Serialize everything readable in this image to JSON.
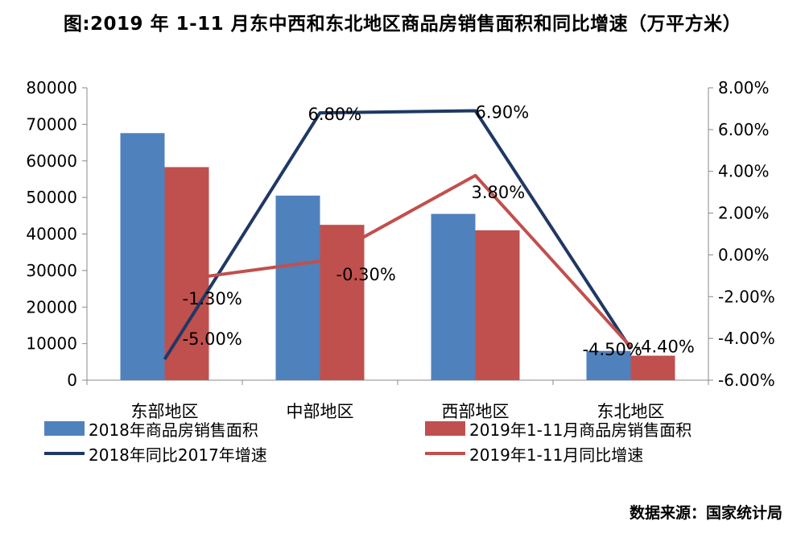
{
  "title": "图:2019 年 1-11 月东中西和东北地区商品房销售面积和同比增速（万平方米）",
  "source": "数据来源：国家统计局",
  "chart_data": {
    "type": "bar",
    "categories": [
      "东部地区",
      "中部地区",
      "西部地区",
      "东北地区"
    ],
    "y_left": {
      "lim": [
        0,
        80000
      ],
      "ticks": [
        "0",
        "10000",
        "20000",
        "30000",
        "40000",
        "50000",
        "60000",
        "70000",
        "80000"
      ]
    },
    "y_right": {
      "lim": [
        -6,
        8
      ],
      "ticks": [
        "-6.00%",
        "-4.00%",
        "-2.00%",
        "0.00%",
        "2.00%",
        "4.00%",
        "6.00%",
        "8.00%"
      ]
    },
    "series": [
      {
        "name": "2018年商品房销售面积",
        "kind": "bar",
        "axis": "left",
        "color": "#4f81bd",
        "values": [
          67600,
          50500,
          45500,
          8000
        ]
      },
      {
        "name": "2019年1-11月商品房销售面积",
        "kind": "bar",
        "axis": "left",
        "color": "#c0504d",
        "values": [
          58300,
          42500,
          41000,
          6700
        ]
      },
      {
        "name": "2018年同比2017年增速",
        "kind": "line",
        "axis": "right",
        "color": "#1f3864",
        "values": [
          -5.0,
          6.8,
          6.9,
          -4.5
        ],
        "labels": [
          "-5.00%",
          "6.80%",
          "6.90%",
          "-4.50%"
        ]
      },
      {
        "name": "2019年1-11月同比增速",
        "kind": "line",
        "axis": "right",
        "color": "#c0504d",
        "values": [
          -1.3,
          -0.3,
          3.8,
          -4.4
        ],
        "labels": [
          "-1.30%",
          "-0.30%",
          "3.80%",
          "-4.40%"
        ]
      }
    ],
    "grid": false,
    "legend": "bottom"
  }
}
